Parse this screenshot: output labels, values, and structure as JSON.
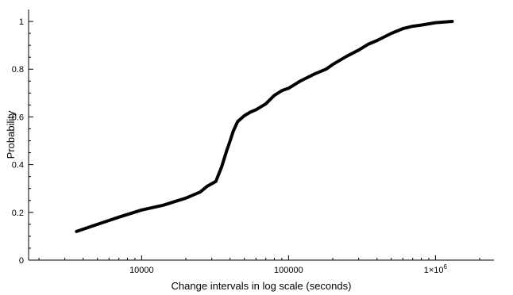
{
  "chart_data": {
    "type": "line",
    "xlabel": "Change intervals in log scale (seconds)",
    "ylabel": "Probability",
    "x_scale": "log",
    "xlim": [
      1700,
      2500000
    ],
    "ylim": [
      0,
      1.05
    ],
    "grid": false,
    "legend": "none",
    "x_ticks": [
      {
        "value": 10000,
        "label": "10000"
      },
      {
        "value": 100000,
        "label": "100000"
      },
      {
        "value": 1000000,
        "label": "1×10",
        "sup": "6"
      }
    ],
    "y_ticks": [
      {
        "value": 0,
        "label": "0"
      },
      {
        "value": 0.2,
        "label": "0.2"
      },
      {
        "value": 0.4,
        "label": "0.4"
      },
      {
        "value": 0.6,
        "label": "0.6"
      },
      {
        "value": 0.8,
        "label": "0.8"
      },
      {
        "value": 1,
        "label": "1"
      }
    ],
    "series": [
      {
        "color": "#000000",
        "x": [
          3600,
          5000,
          7000,
          10000,
          14000,
          20000,
          25000,
          28000,
          32000,
          35000,
          38000,
          40000,
          42000,
          45000,
          50000,
          55000,
          60000,
          70000,
          80000,
          90000,
          100000,
          120000,
          150000,
          180000,
          200000,
          250000,
          300000,
          350000,
          400000,
          500000,
          600000,
          700000,
          800000,
          1000000,
          1300000
        ],
        "y": [
          0.12,
          0.15,
          0.18,
          0.21,
          0.23,
          0.26,
          0.285,
          0.31,
          0.33,
          0.39,
          0.46,
          0.5,
          0.54,
          0.58,
          0.605,
          0.62,
          0.63,
          0.655,
          0.69,
          0.71,
          0.72,
          0.75,
          0.78,
          0.8,
          0.82,
          0.855,
          0.88,
          0.905,
          0.92,
          0.95,
          0.97,
          0.98,
          0.985,
          0.995,
          1.0
        ]
      }
    ]
  }
}
